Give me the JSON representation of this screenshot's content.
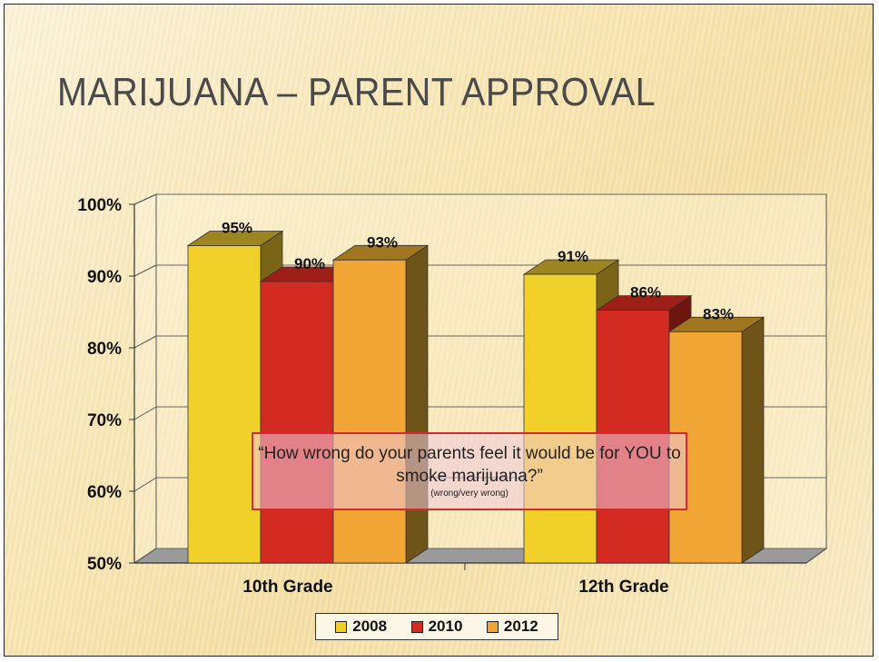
{
  "slide": {
    "title": "MARIJUANA – PARENT APPROVAL"
  },
  "question_box": {
    "main_text": "“How wrong do your parents feel it would be for YOU to smoke marijuana?”",
    "sub_text": "(wrong/very wrong)"
  },
  "colors": {
    "2008": "#f2d02a",
    "2010": "#d32a22",
    "2012": "#f0a535"
  },
  "chart_data": {
    "type": "bar",
    "title": "",
    "xlabel": "",
    "ylabel": "",
    "ylim": [
      50,
      100
    ],
    "yticks": [
      "50%",
      "60%",
      "70%",
      "80%",
      "90%",
      "100%"
    ],
    "grid": true,
    "legend_position": "bottom",
    "categories": [
      "10th Grade",
      "12th Grade"
    ],
    "series": [
      {
        "name": "2008",
        "values": [
          95,
          91
        ],
        "labels": [
          "95%",
          "91%"
        ]
      },
      {
        "name": "2010",
        "values": [
          90,
          86
        ],
        "labels": [
          "90%",
          "86%"
        ]
      },
      {
        "name": "2012",
        "values": [
          93,
          83
        ],
        "labels": [
          "93%",
          "83%"
        ]
      }
    ]
  }
}
